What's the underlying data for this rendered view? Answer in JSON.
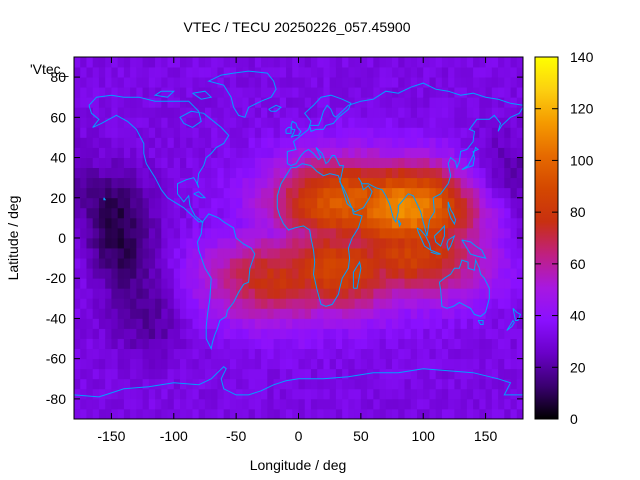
{
  "chart_data": {
    "type": "heatmap",
    "title": "VTEC / TECU 20250226_057.45900",
    "xlabel": "Longitude / deg",
    "ylabel": "Latitude / deg",
    "key_label": "'Vtec_",
    "xlim": [
      -180,
      180
    ],
    "ylim": [
      -90,
      90
    ],
    "x_ticks": [
      -150,
      -100,
      -50,
      0,
      50,
      100,
      150
    ],
    "y_ticks": [
      -80,
      -60,
      -40,
      -20,
      0,
      20,
      40,
      60,
      80
    ],
    "colorbar": {
      "range": [
        0,
        140
      ],
      "ticks": [
        0,
        20,
        40,
        60,
        80,
        100,
        120,
        140
      ],
      "palette": [
        "#000000",
        "#3a0070",
        "#6a00c8",
        "#8a10ff",
        "#a818e0",
        "#c02080",
        "#c83010",
        "#d44800",
        "#e66a00",
        "#f59a00",
        "#fcd010",
        "#ffff00"
      ]
    },
    "grid_resolution_deg": [
      5,
      5
    ],
    "field_model": {
      "background_tecu": 32,
      "polar_caps_tecu": 28,
      "dark_regions": [
        {
          "lon": -150,
          "lat": 15,
          "tecu": 12
        },
        {
          "lon": -140,
          "lat": -10,
          "tecu": 14
        },
        {
          "lon": -120,
          "lat": -40,
          "tecu": 18
        },
        {
          "lon": 160,
          "lat": 30,
          "tecu": 15
        }
      ],
      "crests": [
        {
          "lon": 40,
          "lat": 18,
          "peak_tecu": 98
        },
        {
          "lon": 85,
          "lat": 15,
          "peak_tecu": 112
        },
        {
          "lon": 30,
          "lat": -15,
          "peak_tecu": 88
        },
        {
          "lon": 90,
          "lat": -8,
          "peak_tecu": 85
        },
        {
          "lon": -15,
          "lat": -20,
          "peak_tecu": 78
        }
      ],
      "equatorial_trough_tecu": 70
    },
    "overlay": "coastlines",
    "coastline_color": "#00a0ff"
  }
}
